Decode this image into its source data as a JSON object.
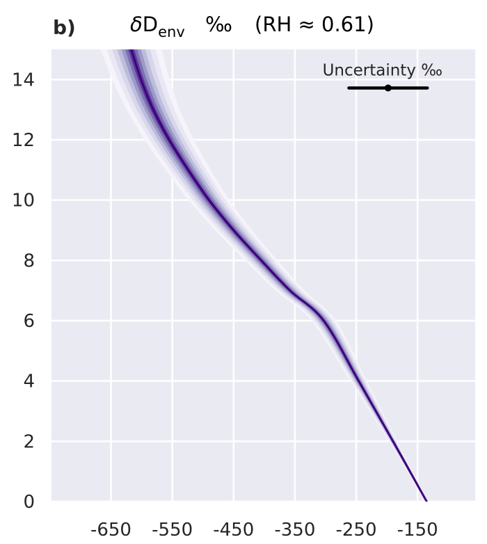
{
  "chart_data": {
    "type": "line",
    "panel_label": "b)",
    "title": {
      "symbol": "δ",
      "main": "D",
      "subscript": "env",
      "unit": "‰",
      "note": "(RH ≈ 0.61)"
    },
    "x_ticks": [
      -650,
      -550,
      -450,
      -350,
      -250,
      -150
    ],
    "x_tick_labels": [
      "-650",
      "-550",
      "-450",
      "-350",
      "-250",
      "-150"
    ],
    "y_ticks": [
      0,
      2,
      4,
      6,
      8,
      10,
      12,
      14
    ],
    "y_tick_labels": [
      "0",
      "2",
      "4",
      "6",
      "8",
      "10",
      "12",
      "14"
    ],
    "xlim": [
      -747,
      -56
    ],
    "ylim": [
      0,
      15
    ],
    "grid": true,
    "series": [
      {
        "x": [
          -617,
          -601,
          -581,
          -555,
          -524,
          -490,
          -450,
          -405,
          -358,
          -303,
          -246,
          -190,
          -135
        ],
        "y": [
          15,
          14,
          13,
          12,
          11,
          10,
          9,
          8,
          7,
          6,
          4,
          2,
          0
        ]
      }
    ],
    "band_halfwidths": [
      50,
      40,
      31,
      23,
      16,
      10,
      5
    ],
    "annotation": {
      "label": "Uncertainty ‰",
      "center_x": -198,
      "halfwidth": 64,
      "y": 13.72
    },
    "colors": {
      "background": "#eaeaf2",
      "grid": "#ffffff",
      "line": "#3f007d",
      "bands": [
        "#f6f4fa",
        "#e9e7f3",
        "#d8d6ea",
        "#bcbddc",
        "#9e9ac8",
        "#7c70b2",
        "#5a3a9a"
      ],
      "annotation": "#000000"
    }
  }
}
